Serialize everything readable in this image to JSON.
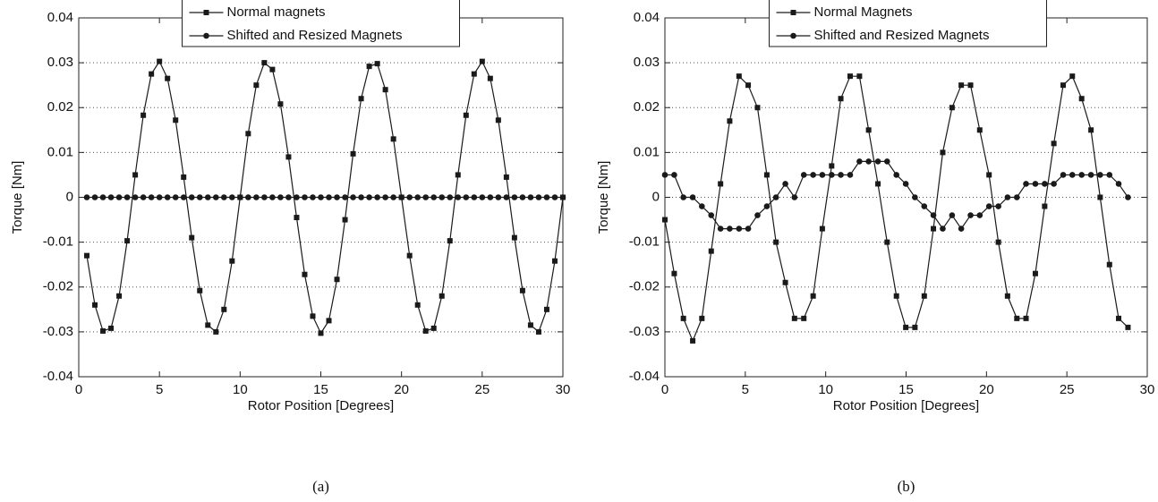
{
  "chart_data": [
    {
      "type": "line",
      "caption": "(a)",
      "xlabel": "Rotor Position [Degrees]",
      "ylabel": "Torque [Nm]",
      "xlim": [
        0,
        30
      ],
      "xticks": [
        0,
        5,
        10,
        15,
        20,
        25,
        30
      ],
      "ylim": [
        -0.04,
        0.04
      ],
      "yticks": [
        -0.04,
        -0.03,
        -0.02,
        -0.01,
        0,
        0.01,
        0.02,
        0.03,
        0.04
      ],
      "ygrid": true,
      "legend": "top",
      "x": [
        0.5,
        1,
        1.5,
        2,
        2.5,
        3,
        3.5,
        4,
        4.5,
        5,
        5.5,
        6,
        6.5,
        7,
        7.5,
        8,
        8.5,
        9,
        9.5,
        10,
        10.5,
        11,
        11.5,
        12,
        12.5,
        13,
        13.5,
        14,
        14.5,
        15,
        15.5,
        16,
        16.5,
        17,
        17.5,
        18,
        18.5,
        19,
        19.5,
        20,
        20.5,
        21,
        21.5,
        22,
        22.5,
        23,
        23.5,
        24,
        24.5,
        25,
        25.5,
        26,
        26.5,
        27,
        27.5,
        28,
        28.5,
        29,
        29.5,
        30
      ],
      "series": [
        {
          "name": "Normal magnets",
          "color": "#1a1a1a",
          "marker": "square",
          "values": [
            -0.013,
            -0.024,
            -0.0298,
            -0.0292,
            -0.022,
            -0.0097,
            0.005,
            0.0183,
            0.0275,
            0.0303,
            0.0265,
            0.0172,
            0.0045,
            -0.009,
            -0.0208,
            -0.0285,
            -0.03,
            -0.025,
            -0.0142,
            0,
            0.0142,
            0.025,
            0.03,
            0.0285,
            0.0208,
            0.009,
            -0.0045,
            -0.0172,
            -0.0265,
            -0.0303,
            -0.0275,
            -0.0183,
            -0.005,
            0.0097,
            0.022,
            0.0292,
            0.0298,
            0.024,
            0.013,
            0,
            -0.013,
            -0.024,
            -0.0298,
            -0.0292,
            -0.022,
            -0.0097,
            0.005,
            0.0183,
            0.0275,
            0.0303,
            0.0265,
            0.0172,
            0.0045,
            -0.009,
            -0.0208,
            -0.0285,
            -0.03,
            -0.025,
            -0.0142,
            0
          ]
        },
        {
          "name": "Shifted and Resized Magnets",
          "color": "#1a1a1a",
          "marker": "circle",
          "values": [
            0,
            0,
            0,
            0,
            0,
            0,
            0,
            0,
            0,
            0,
            0,
            0,
            0,
            0,
            0,
            0,
            0,
            0,
            0,
            0,
            0,
            0,
            0,
            0,
            0,
            0,
            0,
            0,
            0,
            0,
            0,
            0,
            0,
            0,
            0,
            0,
            0,
            0,
            0,
            0,
            0,
            0,
            0,
            0,
            0,
            0,
            0,
            0,
            0,
            0,
            0,
            0,
            0,
            0,
            0,
            0,
            0,
            0,
            0,
            0
          ]
        }
      ]
    },
    {
      "type": "line",
      "caption": "(b)",
      "xlabel": "Rotor Position [Degrees]",
      "ylabel": "Torque [Nm]",
      "xlim": [
        0,
        30
      ],
      "xticks": [
        0,
        5,
        10,
        15,
        20,
        25,
        30
      ],
      "ylim": [
        -0.04,
        0.04
      ],
      "yticks": [
        -0.04,
        -0.03,
        -0.02,
        -0.01,
        0,
        0.01,
        0.02,
        0.03,
        0.04
      ],
      "ygrid": true,
      "legend": "top",
      "x": [
        0,
        0.58,
        1.15,
        1.73,
        2.3,
        2.88,
        3.46,
        4.03,
        4.61,
        5.18,
        5.76,
        6.34,
        6.91,
        7.49,
        8.06,
        8.64,
        9.22,
        9.79,
        10.37,
        10.94,
        11.52,
        12.1,
        12.67,
        13.25,
        13.82,
        14.4,
        14.98,
        15.55,
        16.13,
        16.7,
        17.28,
        17.86,
        18.43,
        19.01,
        19.58,
        20.16,
        20.74,
        21.31,
        21.89,
        22.46,
        23.04,
        23.62,
        24.19,
        24.77,
        25.34,
        25.92,
        26.5,
        27.07,
        27.65,
        28.22,
        28.8
      ],
      "series": [
        {
          "name": "Normal Magnets",
          "color": "#1a1a1a",
          "marker": "square",
          "values": [
            -0.005,
            -0.017,
            -0.027,
            -0.032,
            -0.027,
            -0.012,
            0.003,
            0.017,
            0.027,
            0.025,
            0.02,
            0.005,
            -0.01,
            -0.019,
            -0.027,
            -0.027,
            -0.022,
            -0.007,
            0.007,
            0.022,
            0.027,
            0.027,
            0.015,
            0.003,
            -0.01,
            -0.022,
            -0.029,
            -0.029,
            -0.022,
            -0.007,
            0.01,
            0.02,
            0.025,
            0.025,
            0.015,
            0.005,
            -0.01,
            -0.022,
            -0.027,
            -0.027,
            -0.017,
            -0.002,
            0.012,
            0.025,
            0.027,
            0.022,
            0.015,
            0,
            -0.015,
            -0.027,
            -0.029
          ]
        },
        {
          "name": "Shifted and Resized Magnets",
          "color": "#1a1a1a",
          "marker": "circle",
          "values": [
            0.005,
            0.005,
            0,
            0,
            -0.002,
            -0.004,
            -0.007,
            -0.007,
            -0.007,
            -0.007,
            -0.004,
            -0.002,
            0,
            0.003,
            0,
            0.005,
            0.005,
            0.005,
            0.005,
            0.005,
            0.005,
            0.008,
            0.008,
            0.008,
            0.008,
            0.005,
            0.003,
            0,
            -0.002,
            -0.004,
            -0.007,
            -0.004,
            -0.007,
            -0.004,
            -0.004,
            -0.002,
            -0.002,
            0,
            0,
            0.003,
            0.003,
            0.003,
            0.003,
            0.005,
            0.005,
            0.005,
            0.005,
            0.005,
            0.005,
            0.003,
            0
          ]
        }
      ]
    }
  ]
}
